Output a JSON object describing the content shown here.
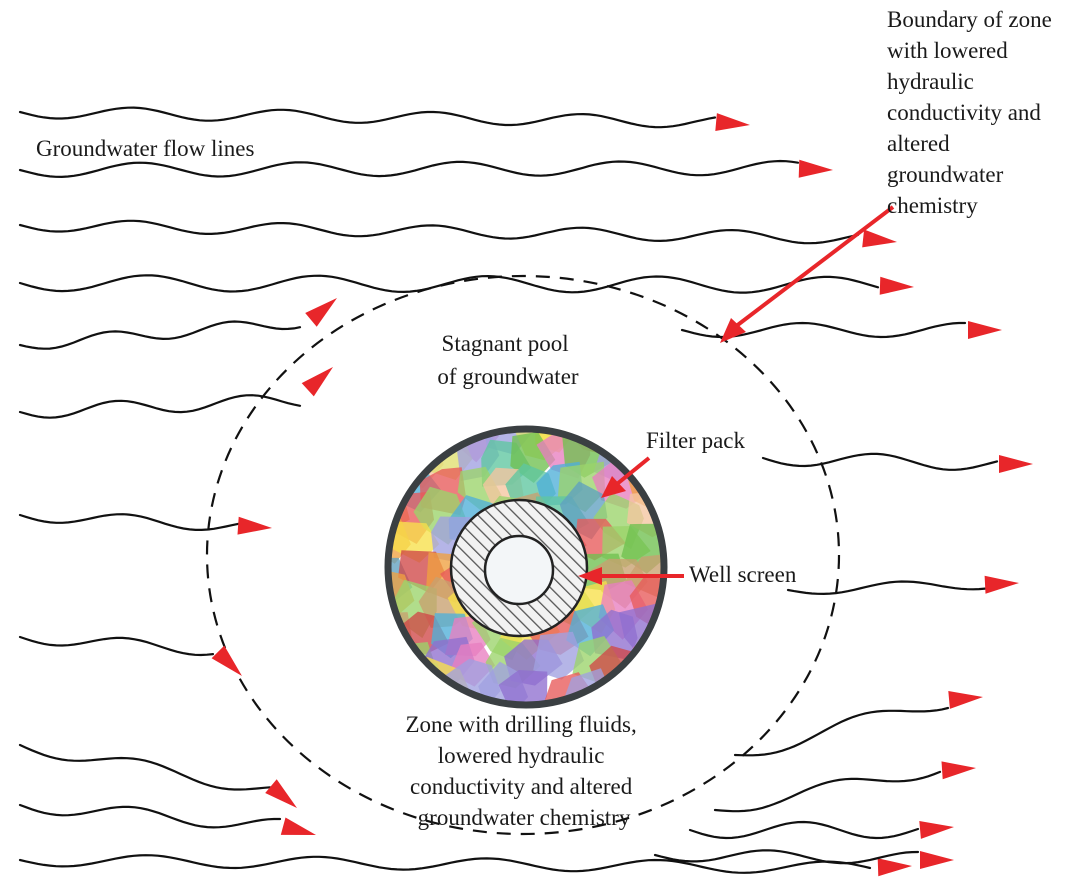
{
  "labels": {
    "flow_lines": "Groundwater flow lines",
    "boundary": [
      "Boundary of zone",
      "with lowered",
      "hydraulic",
      "conductivity and",
      "altered",
      "groundwater",
      "chemistry"
    ],
    "stagnant": [
      "Stagnant pool",
      "of groundwater"
    ],
    "filter_pack": "Filter pack",
    "well_screen": "Well screen",
    "zone": [
      "Zone with drilling fluids,",
      "lowered hydraulic",
      "conductivity and altered",
      "groundwater chemistry"
    ]
  },
  "colors": {
    "arrow": "#e8262a",
    "flow_line": "#111111",
    "boundary_dash": "#111111",
    "well_ring": "#3a3f42",
    "screen_fill": "#f3f6f8"
  },
  "filter_pack_palette": [
    "#e85a5a",
    "#f0a040",
    "#f7e04a",
    "#9bd36a",
    "#4fb0d8",
    "#8f6fd0",
    "#e87fc0",
    "#5fc7a0",
    "#c8a070",
    "#d04848",
    "#70c050",
    "#a0a0e0",
    "#f5c5a0",
    "#60a0c0",
    "#e0e070"
  ]
}
